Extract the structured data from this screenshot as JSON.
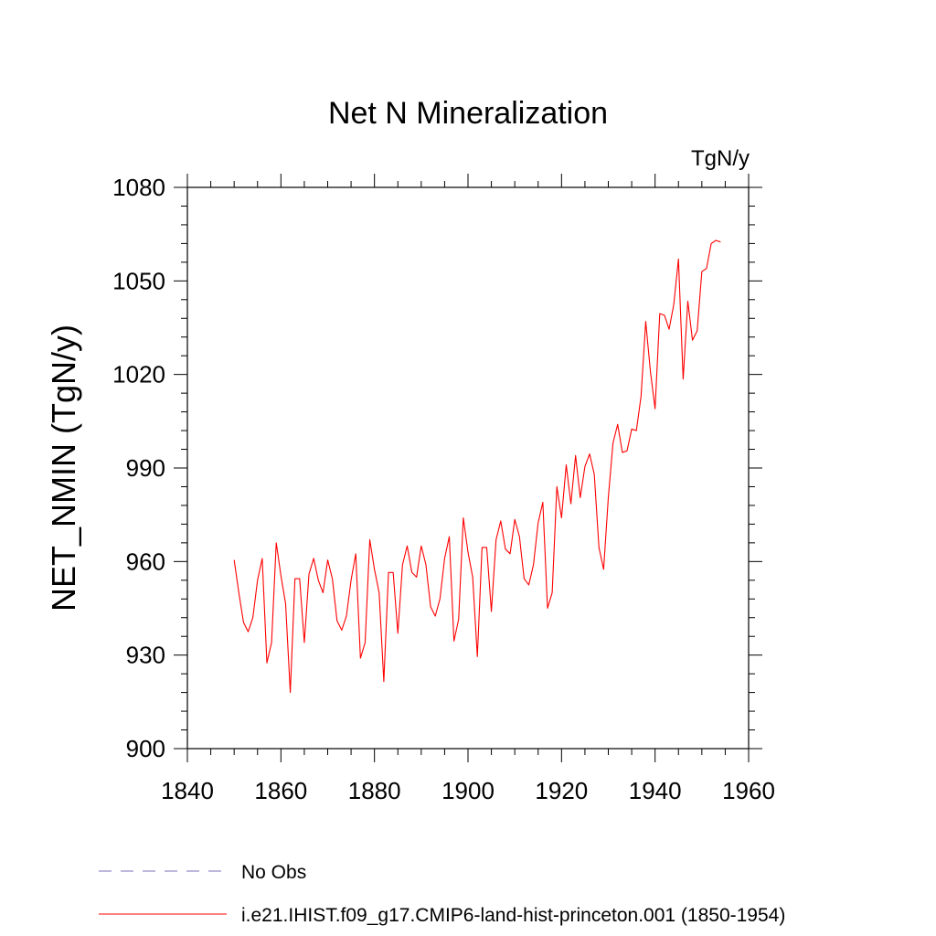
{
  "chart_data": {
    "type": "line",
    "title": "Net N Mineralization",
    "units": "TgN/y",
    "ylabel": "NET_NMIN  (TgN/y)",
    "xlabel": "",
    "xlim": [
      1840,
      1960
    ],
    "ylim": [
      900,
      1080
    ],
    "xticks": [
      1840,
      1860,
      1880,
      1900,
      1920,
      1940,
      1960
    ],
    "yticks": [
      900,
      930,
      960,
      990,
      1020,
      1050,
      1080
    ],
    "grid": false,
    "legend_position": "bottom-left",
    "series": [
      {
        "name": "No Obs",
        "color": "#7b6fb8",
        "dash": "dashed",
        "x": [],
        "y": []
      },
      {
        "name": "i.e21.IHIST.f09_g17.CMIP6-land-hist-princeton.001 (1850-1954)",
        "color": "#ff0000",
        "dash": "solid",
        "x": [
          1850,
          1851,
          1852,
          1853,
          1854,
          1855,
          1856,
          1857,
          1858,
          1859,
          1860,
          1861,
          1862,
          1863,
          1864,
          1865,
          1866,
          1867,
          1868,
          1869,
          1870,
          1871,
          1872,
          1873,
          1874,
          1875,
          1876,
          1877,
          1878,
          1879,
          1880,
          1881,
          1882,
          1883,
          1884,
          1885,
          1886,
          1887,
          1888,
          1889,
          1890,
          1891,
          1892,
          1893,
          1894,
          1895,
          1896,
          1897,
          1898,
          1899,
          1900,
          1901,
          1902,
          1903,
          1904,
          1905,
          1906,
          1907,
          1908,
          1909,
          1910,
          1911,
          1912,
          1913,
          1914,
          1915,
          1916,
          1917,
          1918,
          1919,
          1920,
          1921,
          1922,
          1923,
          1924,
          1925,
          1926,
          1927,
          1928,
          1929,
          1930,
          1931,
          1932,
          1933,
          1934,
          1935,
          1936,
          1937,
          1938,
          1939,
          1940,
          1941,
          1942,
          1943,
          1944,
          1945,
          1946,
          1947,
          1948,
          1949,
          1950,
          1951,
          1952,
          1953,
          1954
        ],
        "y": [
          960.5,
          950,
          940.5,
          937.5,
          942,
          954,
          961,
          927.5,
          934,
          966,
          955.5,
          946.5,
          918,
          954.5,
          954.5,
          934,
          956,
          961,
          954,
          950,
          960.5,
          954.5,
          941,
          938,
          942.5,
          954,
          962.5,
          929,
          934,
          967,
          957.5,
          950,
          921.5,
          956.5,
          956.5,
          937,
          959,
          965,
          956.5,
          955,
          965,
          959,
          945.5,
          942.5,
          948,
          961,
          968,
          934.5,
          941.5,
          974,
          963,
          955,
          929.5,
          964.5,
          964.5,
          944,
          967,
          973,
          964,
          962.5,
          973.5,
          968,
          954.5,
          952.5,
          959,
          972.5,
          979,
          945,
          950,
          984,
          974,
          991,
          978.5,
          994,
          980.5,
          990.5,
          994.5,
          988,
          964.5,
          957.5,
          980.5,
          998,
          1004,
          995,
          995.5,
          1002.5,
          1002,
          1013,
          1037,
          1021,
          1009,
          1039.5,
          1039,
          1034.5,
          1042.5,
          1057,
          1018.5,
          1043.5,
          1031,
          1034,
          1053,
          1054,
          1062,
          1063,
          1062.5
        ]
      }
    ]
  }
}
